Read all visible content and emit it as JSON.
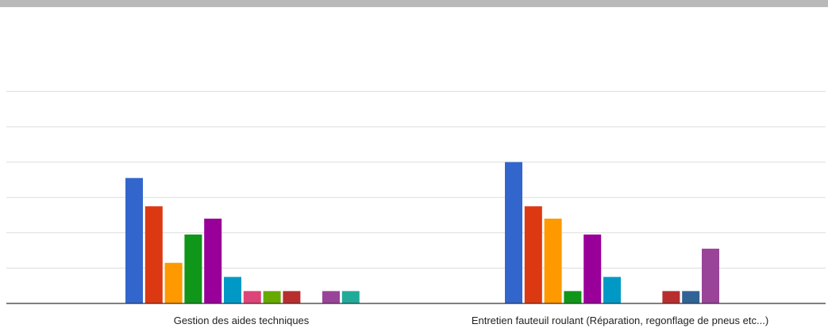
{
  "chart_data": {
    "type": "bar",
    "categories": [
      "Gestion des aides techniques",
      "Entretien fauteuil roulant (Réparation, regonflage de pneus etc...)"
    ],
    "ylim": [
      0,
      6
    ],
    "grid": true,
    "series": [
      {
        "color": "#3366cc",
        "values": [
          3.55,
          4.0
        ]
      },
      {
        "color": "#dc3912",
        "values": [
          2.75,
          2.75
        ]
      },
      {
        "color": "#ff9900",
        "values": [
          1.15,
          2.4
        ]
      },
      {
        "color": "#109618",
        "values": [
          1.95,
          0.35
        ]
      },
      {
        "color": "#990099",
        "values": [
          2.4,
          1.95
        ]
      },
      {
        "color": "#0099c6",
        "values": [
          0.75,
          0.75
        ]
      },
      {
        "color": "#dd4477",
        "values": [
          0.35,
          0
        ]
      },
      {
        "color": "#66aa00",
        "values": [
          0.35,
          0
        ]
      },
      {
        "color": "#b82e2e",
        "values": [
          0.35,
          0.35
        ]
      },
      {
        "color": "#316395",
        "values": [
          0,
          0.35
        ]
      },
      {
        "color": "#994499",
        "values": [
          0.35,
          1.55
        ]
      },
      {
        "color": "#22aa99",
        "values": [
          0.35,
          0
        ]
      }
    ]
  }
}
